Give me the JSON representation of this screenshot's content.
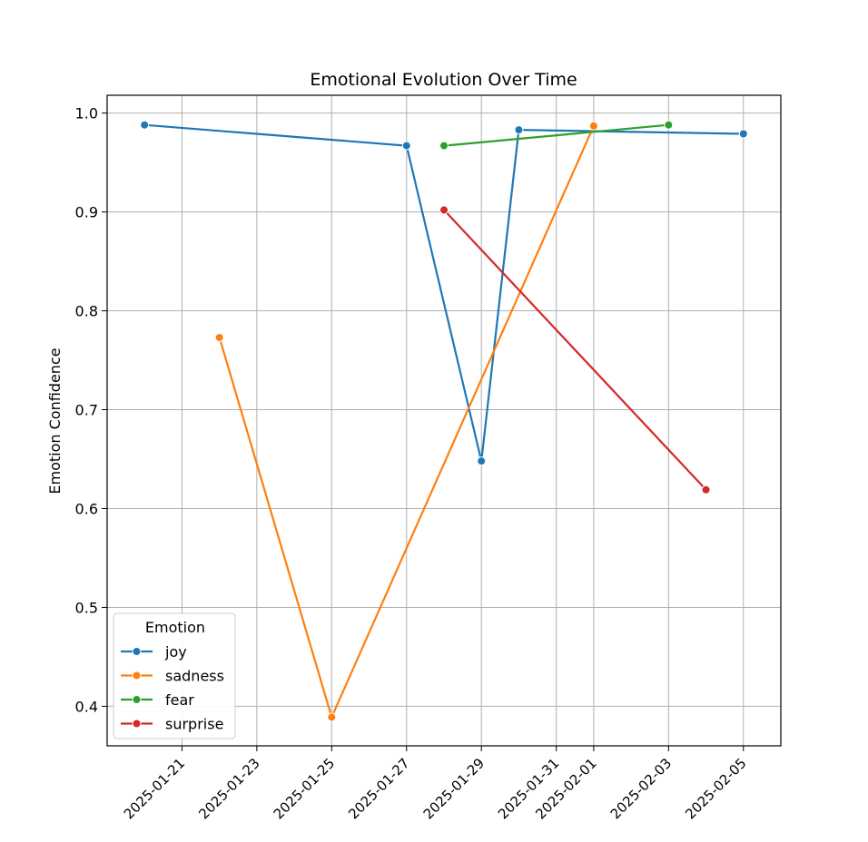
{
  "chart_data": {
    "type": "line",
    "title": "Emotional Evolution Over Time",
    "xlabel": "",
    "ylabel": "Emotion Confidence",
    "xlim": [
      "2025-01-19",
      "2025-02-06"
    ],
    "ylim": [
      0.36,
      1.018
    ],
    "x_ticks": [
      "2025-01-21",
      "2025-01-23",
      "2025-01-25",
      "2025-01-27",
      "2025-01-29",
      "2025-01-31",
      "2025-02-01",
      "2025-02-03",
      "2025-02-05"
    ],
    "y_ticks": [
      0.4,
      0.5,
      0.6,
      0.7,
      0.8,
      0.9,
      1.0
    ],
    "y_tick_labels": [
      "0.4",
      "0.5",
      "0.6",
      "0.7",
      "0.8",
      "0.9",
      "1.0"
    ],
    "grid": true,
    "legend": {
      "title": "Emotion",
      "position": "lower-left"
    },
    "series": [
      {
        "name": "joy",
        "color": "#1f77b4",
        "points": [
          {
            "x": "2025-01-20",
            "y": 0.988
          },
          {
            "x": "2025-01-27",
            "y": 0.967
          },
          {
            "x": "2025-01-29",
            "y": 0.648
          },
          {
            "x": "2025-01-30",
            "y": 0.983
          },
          {
            "x": "2025-02-05",
            "y": 0.979
          }
        ]
      },
      {
        "name": "sadness",
        "color": "#ff7f0e",
        "points": [
          {
            "x": "2025-01-22",
            "y": 0.773
          },
          {
            "x": "2025-01-25",
            "y": 0.389
          },
          {
            "x": "2025-02-01",
            "y": 0.987
          }
        ]
      },
      {
        "name": "fear",
        "color": "#2ca02c",
        "points": [
          {
            "x": "2025-01-28",
            "y": 0.967
          },
          {
            "x": "2025-02-03",
            "y": 0.988
          }
        ]
      },
      {
        "name": "surprise",
        "color": "#d62728",
        "points": [
          {
            "x": "2025-01-28",
            "y": 0.902
          },
          {
            "x": "2025-02-04",
            "y": 0.619
          }
        ]
      }
    ]
  }
}
